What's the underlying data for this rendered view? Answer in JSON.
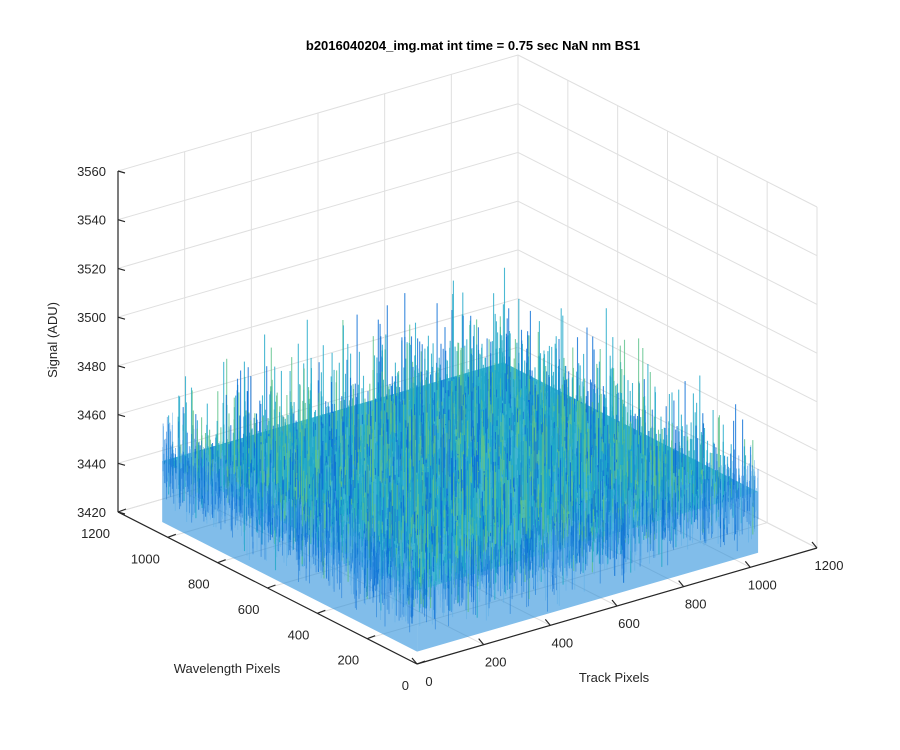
{
  "chart_data": {
    "type": "surface",
    "title": "b2016040204_img.mat int time = 0.75 sec  NaN nm BS1",
    "xlabel": "Track Pixels",
    "ylabel": "Wavelength Pixels",
    "zlabel": "Signal (ADU)",
    "xlim": [
      0,
      1200
    ],
    "ylim": [
      0,
      1200
    ],
    "zlim": [
      3420,
      3560
    ],
    "x_ticks": [
      0,
      200,
      400,
      600,
      800,
      1000,
      1200
    ],
    "y_ticks": [
      0,
      200,
      400,
      600,
      800,
      1000,
      1200
    ],
    "z_ticks": [
      3420,
      3440,
      3460,
      3480,
      3500,
      3520,
      3540,
      3560
    ],
    "x_tick_labels": [
      "0",
      "200",
      "400",
      "600",
      "800",
      "1000",
      "1200"
    ],
    "y_tick_labels": [
      "0",
      "200",
      "400",
      "600",
      "800",
      "1000",
      "1200"
    ],
    "z_tick_labels": [
      "3420",
      "3440",
      "3460",
      "3480",
      "3500",
      "3520",
      "3540",
      "3560"
    ],
    "surface": {
      "x_range": [
        1,
        1024
      ],
      "y_range": [
        1,
        1024
      ],
      "mean_signal": 3450,
      "noise_range": [
        3425,
        3505
      ]
    },
    "grid": true,
    "colormap": "parula",
    "colors": {
      "low": "#0b6fd6",
      "mid": "#1fa8c9",
      "high": "#5cc28a"
    }
  }
}
